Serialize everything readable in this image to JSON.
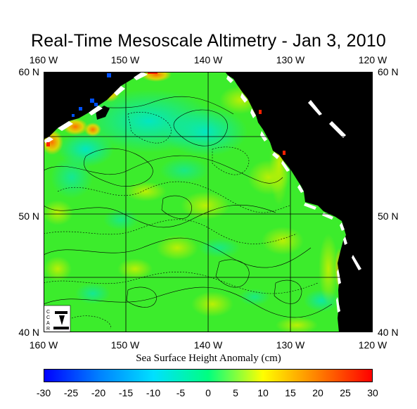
{
  "title": "Real-Time Mesoscale Altimetry - Jan 3, 2010",
  "longitude_labels": [
    "160 W",
    "150 W",
    "140 W",
    "130 W",
    "120 W"
  ],
  "latitude_labels": [
    "60 N",
    "50 N",
    "40 N"
  ],
  "logo_text": "CCAR",
  "colorbar": {
    "title": "Sea Surface Height Anomaly (cm)",
    "ticks": [
      "-30",
      "-25",
      "-20",
      "-15",
      "-10",
      "-5",
      "0",
      "5",
      "10",
      "15",
      "20",
      "25",
      "30"
    ],
    "min": -30,
    "max": 30,
    "colors": [
      "#0000ff",
      "#0080ff",
      "#00e0ff",
      "#00ff80",
      "#ffff00",
      "#ff8000",
      "#ff0000"
    ]
  },
  "map": {
    "ocean_color": "#33ee33",
    "land_color": "#000000"
  }
}
